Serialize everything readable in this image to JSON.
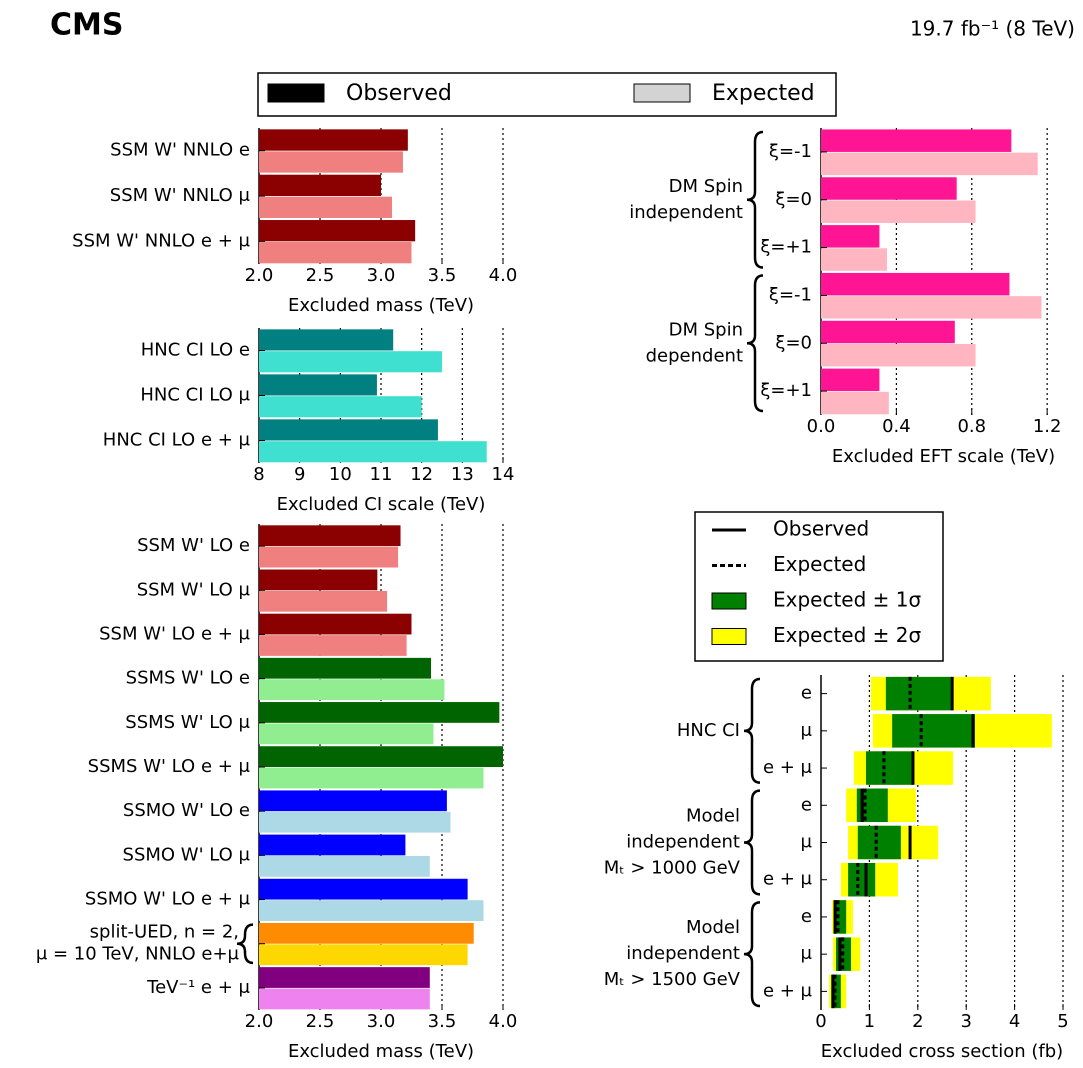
{
  "header": {
    "experiment": "CMS",
    "lumi": "19.7 fb⁻¹  (8 TeV)"
  },
  "legend": [
    {
      "label": "Observed",
      "color": "#000000"
    },
    {
      "label": "Expected",
      "color": "#d3d3d3"
    }
  ],
  "chart_data": [
    {
      "type": "bar",
      "orientation": "horizontal",
      "xlabel": "Excluded mass (TeV)",
      "categories": [
        "SSM W' NNLO e",
        "SSM W' NNLO μ",
        "SSM W' NNLO e + μ"
      ],
      "series": [
        {
          "values": [
            3.22,
            3.0,
            3.28
          ],
          "colors": [
            "#8b0000",
            "#8b0000",
            "#8b0000"
          ]
        },
        {
          "values": [
            3.18,
            3.09,
            3.25
          ],
          "colors": [
            "#f08080",
            "#f08080",
            "#f08080"
          ]
        }
      ],
      "xlim": [
        2,
        4
      ],
      "xticks": [
        {
          "value": 2,
          "label": "2.0"
        },
        2.5,
        {
          "value": 3,
          "label": "3.0"
        },
        3.5,
        {
          "value": 4,
          "label": "4.0"
        }
      ],
      "grid": true
    },
    {
      "type": "bar",
      "orientation": "horizontal",
      "xlabel": "Excluded CI scale (TeV)",
      "categories": [
        "HNC CI LO e",
        "HNC CI LO μ",
        "HNC CI LO e + μ"
      ],
      "series": [
        {
          "values": [
            11.3,
            10.9,
            12.4
          ],
          "colors": [
            "#008080",
            "#008080",
            "#008080"
          ]
        },
        {
          "values": [
            12.5,
            12.0,
            13.6
          ],
          "colors": [
            "#40e0d0",
            "#40e0d0",
            "#40e0d0"
          ]
        }
      ],
      "xlim": [
        8,
        14
      ],
      "xticks": [
        8,
        9,
        10,
        11,
        12,
        13,
        14
      ],
      "grid": true
    },
    {
      "type": "bar",
      "orientation": "horizontal",
      "xlabel": "Excluded mass (TeV)",
      "categories": [
        "SSM W' LO e",
        "SSM W' LO μ",
        "SSM W' LO e + μ",
        "SSMS W' LO e",
        "SSMS W' LO μ",
        "SSMS W' LO e + μ",
        "SSMO W' LO e",
        "SSMO W' LO μ",
        "SSMO W' LO e + μ",
        [
          "split-UED, n = 2,",
          "μ = 10 TeV, NNLO e+μ"
        ],
        "TeV⁻¹  e + μ"
      ],
      "series": [
        {
          "values": [
            3.16,
            2.97,
            3.25,
            3.41,
            3.97,
            4.0,
            3.54,
            3.2,
            3.71,
            3.76,
            3.4
          ],
          "colors": [
            "#8b0000",
            "#8b0000",
            "#8b0000",
            "#006400",
            "#006400",
            "#006400",
            "#0000ff",
            "#0000ff",
            "#0000ff",
            "#ff8c00",
            "#800080"
          ]
        },
        {
          "values": [
            3.14,
            3.05,
            3.21,
            3.52,
            3.43,
            3.84,
            3.57,
            3.4,
            3.84,
            3.71,
            3.4
          ],
          "colors": [
            "#f08080",
            "#f08080",
            "#f08080",
            "#90ee90",
            "#90ee90",
            "#90ee90",
            "#add8e6",
            "#add8e6",
            "#add8e6",
            "#ffd700",
            "#ee82ee"
          ]
        }
      ],
      "xlim": [
        2,
        4
      ],
      "xticks": [
        {
          "value": 2,
          "label": "2.0"
        },
        2.5,
        {
          "value": 3,
          "label": "3.0"
        },
        3.5,
        {
          "value": 4,
          "label": "4.0"
        }
      ],
      "grid": true
    },
    {
      "type": "bar",
      "orientation": "horizontal",
      "xlabel": "Excluded EFT scale (TeV)",
      "categories": [
        "ξ=-1",
        "ξ=0",
        "ξ=+1",
        "ξ=-1",
        "ξ=0",
        "ξ=+1"
      ],
      "groups": [
        {
          "lines": [
            "DM Spin",
            "independent"
          ],
          "size": 3
        },
        {
          "lines": [
            "DM Spin",
            "dependent"
          ],
          "size": 3
        }
      ],
      "series": [
        {
          "values": [
            1.01,
            0.72,
            0.31,
            1.0,
            0.71,
            0.31
          ],
          "colors": [
            "#ff1493",
            "#ff1493",
            "#ff1493",
            "#ff1493",
            "#ff1493",
            "#ff1493"
          ]
        },
        {
          "values": [
            1.15,
            0.82,
            0.35,
            1.17,
            0.82,
            0.36
          ],
          "colors": [
            "#ffb6c1",
            "#ffb6c1",
            "#ffb6c1",
            "#ffb6c1",
            "#ffb6c1",
            "#ffb6c1"
          ]
        }
      ],
      "xlim": [
        0,
        1.3
      ],
      "xticks": [
        {
          "value": 0,
          "label": "0.0"
        },
        0.4,
        0.8,
        1.2
      ],
      "grid": true
    },
    {
      "type": "interval",
      "xlabel": "Excluded cross section (fb)",
      "categories": [
        "e",
        "μ",
        "e + μ",
        "e",
        "μ",
        "e + μ",
        "e",
        "μ",
        "e + μ"
      ],
      "groups": [
        {
          "lines": [
            "HNC CI"
          ],
          "size": 3
        },
        {
          "lines": [
            "Model",
            "independent",
            "Mₜ  > 1000 GeV"
          ],
          "size": 3
        },
        {
          "lines": [
            "Model",
            "independent",
            "Mₜ  > 1500 GeV"
          ],
          "size": 3
        }
      ],
      "observed": [
        2.71,
        3.14,
        1.9,
        0.85,
        1.84,
        0.93,
        0.29,
        0.39,
        0.25
      ],
      "expected": [
        1.84,
        2.07,
        1.3,
        0.91,
        1.14,
        0.76,
        0.35,
        0.45,
        0.29
      ],
      "sigma1": [
        [
          1.34,
          2.7
        ],
        [
          1.47,
          3.18
        ],
        [
          0.93,
          1.9
        ],
        [
          0.74,
          1.38
        ],
        [
          0.76,
          1.65
        ],
        [
          0.56,
          1.12
        ],
        [
          0.27,
          0.52
        ],
        [
          0.31,
          0.62
        ],
        [
          0.21,
          0.41
        ]
      ],
      "sigma2": [
        [
          1.03,
          3.51
        ],
        [
          1.07,
          4.77
        ],
        [
          0.68,
          2.73
        ],
        [
          0.52,
          1.96
        ],
        [
          0.56,
          2.42
        ],
        [
          0.41,
          1.59
        ],
        [
          0.23,
          0.66
        ],
        [
          0.25,
          0.81
        ],
        [
          0.17,
          0.52
        ]
      ],
      "legend": [
        {
          "label": "Observed",
          "style": "solid"
        },
        {
          "label": "Expected",
          "style": "dashed"
        },
        {
          "label": "Expected ± 1σ",
          "color": "#008000"
        },
        {
          "label": "Expected ± 2σ",
          "color": "#ffff00"
        }
      ],
      "xlim": [
        0,
        5
      ],
      "xticks": [
        0,
        1,
        2,
        3,
        4,
        5
      ],
      "grid": true
    }
  ]
}
